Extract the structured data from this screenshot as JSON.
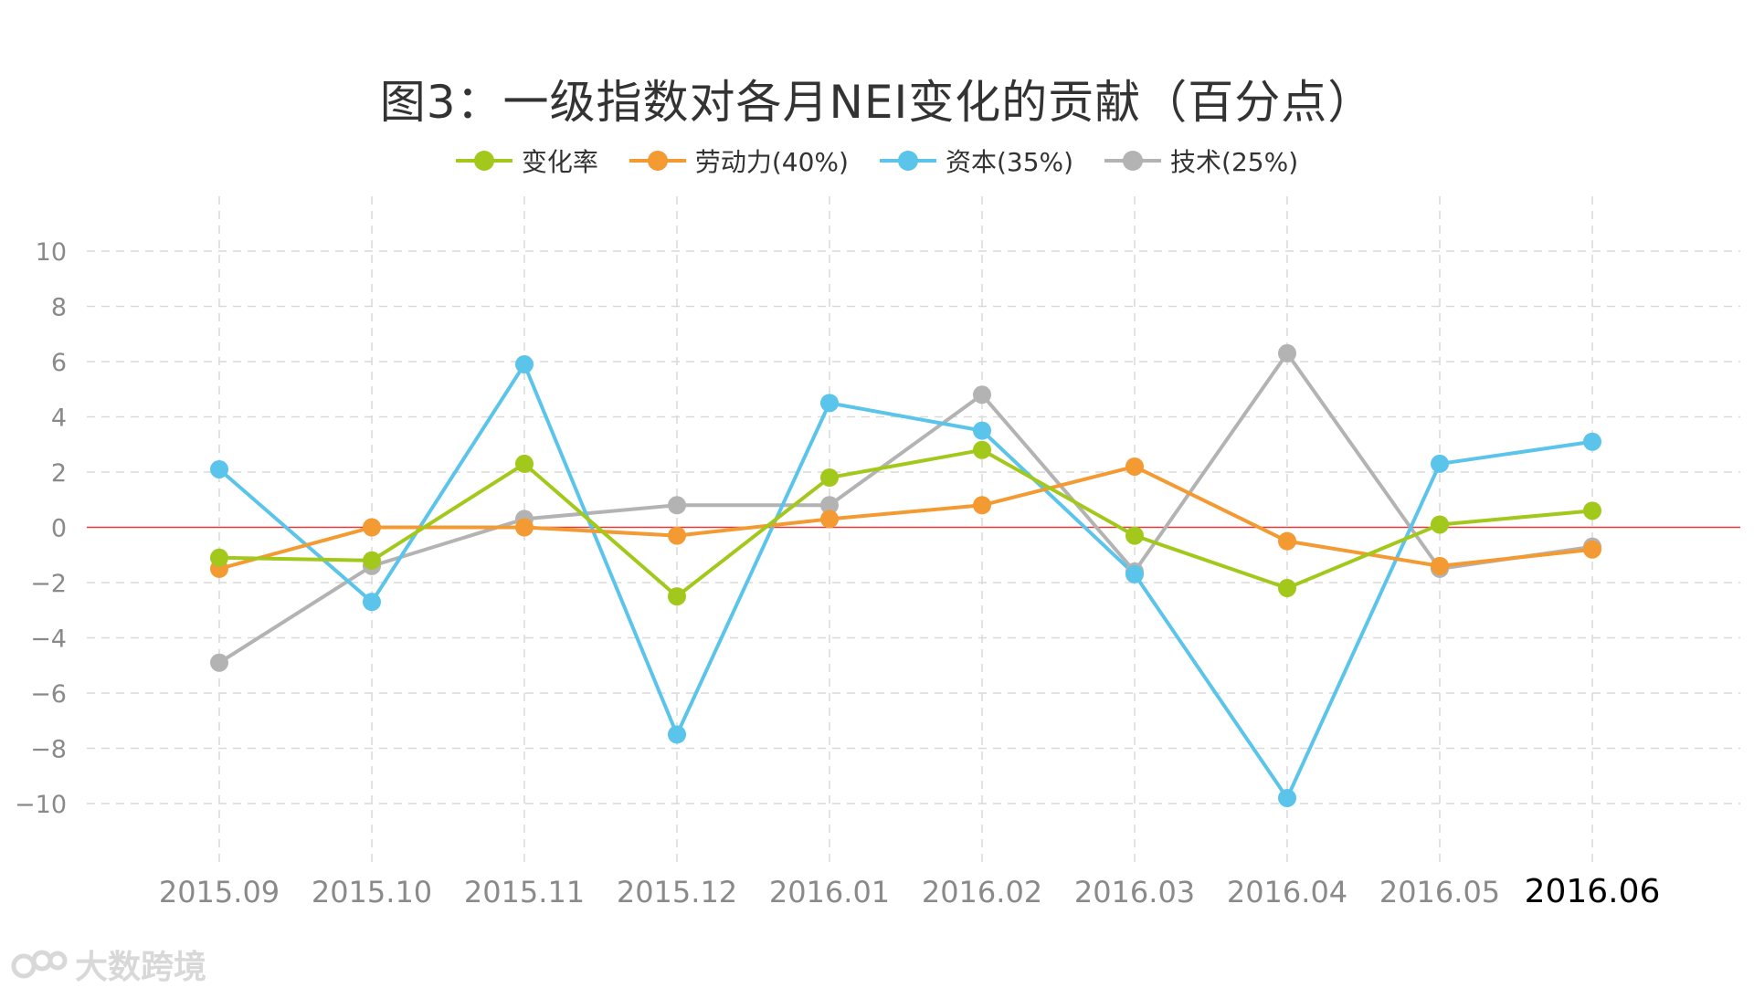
{
  "chart_data": {
    "type": "line",
    "title": "图3：一级指数对各月NEI变化的贡献（百分点）",
    "categories": [
      "2015.09",
      "2015.10",
      "2015.11",
      "2015.12",
      "2016.01",
      "2016.02",
      "2016.03",
      "2016.04",
      "2016.05",
      "2016.06"
    ],
    "highlighted_category": "2016.06",
    "series": [
      {
        "name": "变化率",
        "color": "#a3c81c",
        "values": [
          -1.1,
          -1.2,
          2.3,
          -2.5,
          1.8,
          2.8,
          -0.3,
          -2.2,
          0.1,
          0.6
        ]
      },
      {
        "name": "劳动力(40%)",
        "color": "#f39a32",
        "values": [
          -1.5,
          0.0,
          0.0,
          -0.3,
          0.3,
          0.8,
          2.2,
          -0.5,
          -1.4,
          -0.8
        ]
      },
      {
        "name": "资本(35%)",
        "color": "#5bc4ea",
        "values": [
          2.1,
          -2.7,
          5.9,
          -7.5,
          4.5,
          3.5,
          -1.7,
          -9.8,
          2.3,
          3.1
        ]
      },
      {
        "name": "技术(25%)",
        "color": "#b3b3b3",
        "values": [
          -4.9,
          -1.4,
          0.3,
          0.8,
          0.8,
          4.8,
          -1.6,
          6.3,
          -1.5,
          -0.7
        ]
      }
    ],
    "yticks": [
      "10",
      "8",
      "6",
      "4",
      "2",
      "0",
      "−2",
      "−4",
      "−6",
      "−8",
      "−10"
    ],
    "ytick_values": [
      10,
      8,
      6,
      4,
      2,
      0,
      -2,
      -4,
      -6,
      -8,
      -10
    ],
    "ylim": [
      -10,
      10
    ],
    "xlabel": "",
    "ylabel": "",
    "grid": true,
    "zero_line_color": "#e03c3c",
    "legend_position": "top-center"
  },
  "watermark": {
    "text": "大数跨境"
  }
}
